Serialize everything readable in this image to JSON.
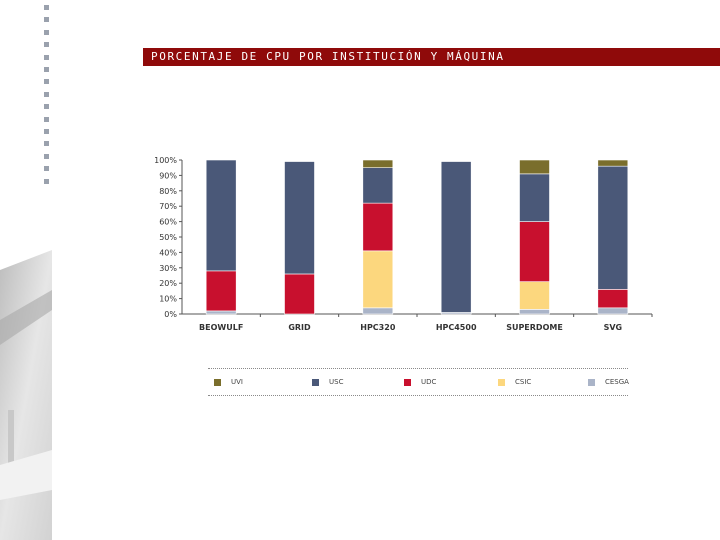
{
  "slide": {
    "title": "PORCENTAJE DE CPU POR INSTITUCIÓN Y MÁQUINA"
  },
  "colors": {
    "title_bar": "#8f0a0a",
    "UVI": "#7a6e2c",
    "USC": "#4a5878",
    "UDC": "#c8102e",
    "CSIC": "#fcd77e",
    "CESGA": "#aab4c8"
  },
  "chart_data": {
    "type": "bar",
    "stacked": true,
    "categories": [
      "BEOWULF",
      "GRID",
      "HPC320",
      "HPC4500",
      "SUPERDOME",
      "SVG"
    ],
    "series": [
      {
        "name": "CESGA",
        "values": [
          2,
          0,
          4,
          1,
          3,
          4
        ]
      },
      {
        "name": "CSIC",
        "values": [
          0,
          0,
          37,
          0,
          18,
          0
        ]
      },
      {
        "name": "UDC",
        "values": [
          26,
          26,
          31,
          0,
          39,
          12
        ]
      },
      {
        "name": "USC",
        "values": [
          72,
          73,
          23,
          98,
          31,
          80
        ]
      },
      {
        "name": "UVI",
        "values": [
          0,
          0,
          5,
          0,
          9,
          4
        ]
      }
    ],
    "ylim": [
      0,
      100
    ],
    "yticks": [
      "0%",
      "10%",
      "20%",
      "30%",
      "40%",
      "50%",
      "60%",
      "70%",
      "80%",
      "90%",
      "100%"
    ],
    "xlabel": "",
    "ylabel": "",
    "legend": {
      "position": "bottom",
      "order": [
        "UVI",
        "USC",
        "UDC",
        "CSIC",
        "CESGA"
      ]
    }
  }
}
